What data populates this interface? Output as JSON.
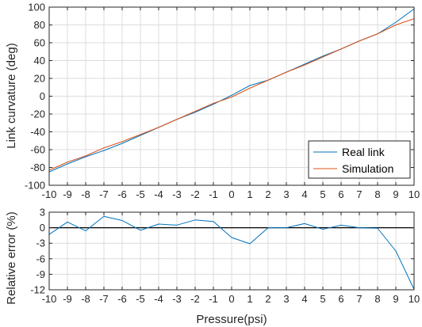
{
  "colors": {
    "real": "#0072BD",
    "sim": "#D95319",
    "zero_line": "#000000",
    "grid": "#dcdcdc",
    "axis": "#262626"
  },
  "chart_data": [
    {
      "type": "line",
      "ylabel": "Link curvature (deg)",
      "xlim": [
        -10,
        10
      ],
      "ylim": [
        -100,
        100
      ],
      "xticks": [
        "-10",
        "-9",
        "-8",
        "-7",
        "-6",
        "-5",
        "-4",
        "-3",
        "-2",
        "-1",
        "0",
        "1",
        "2",
        "3",
        "4",
        "5",
        "6",
        "7",
        "8",
        "9",
        "10"
      ],
      "yticks": [
        "-100",
        "-80",
        "-60",
        "-40",
        "-20",
        "0",
        "20",
        "40",
        "60",
        "80",
        "100"
      ],
      "grid": true,
      "legend_position": "bottom-right",
      "x": [
        -10,
        -9,
        -8,
        -7,
        -6,
        -5,
        -4,
        -3,
        -2,
        -1,
        0,
        1,
        2,
        3,
        4,
        5,
        6,
        7,
        8,
        9,
        10
      ],
      "series": [
        {
          "name": "Real link",
          "values": [
            -85,
            -76,
            -68,
            -61,
            -53,
            -44,
            -35,
            -26,
            -18,
            -9,
            1,
            12,
            18,
            27,
            36,
            45,
            53,
            62,
            70,
            83,
            98
          ]
        },
        {
          "name": "Simulation",
          "values": [
            -83,
            -74,
            -67,
            -58,
            -51,
            -43,
            -35,
            -26,
            -17,
            -8,
            -1,
            9,
            18,
            27,
            35,
            44,
            53,
            62,
            70,
            80,
            87
          ]
        }
      ]
    },
    {
      "type": "line",
      "xlabel": "Pressure(psi)",
      "ylabel": "Relative error (%)",
      "xlim": [
        -10,
        10
      ],
      "ylim": [
        -12,
        3
      ],
      "xticks": [
        "-10",
        "-9",
        "-8",
        "-7",
        "-6",
        "-5",
        "-4",
        "-3",
        "-2",
        "-1",
        "0",
        "1",
        "2",
        "3",
        "4",
        "5",
        "6",
        "7",
        "8",
        "9",
        "10"
      ],
      "yticks": [
        "3",
        "0",
        "-3",
        "-6",
        "-9",
        "-12"
      ],
      "grid": true,
      "reference_line_y": 0,
      "x": [
        -10,
        -9,
        -8,
        -7,
        -6,
        -5,
        -4,
        -3,
        -2,
        -1,
        0,
        1,
        2,
        3,
        4,
        5,
        6,
        7,
        8,
        9,
        10
      ],
      "series": [
        {
          "values": [
            -1.3,
            1.1,
            -0.6,
            2.2,
            1.4,
            -0.5,
            0.7,
            0.5,
            1.5,
            1.2,
            -1.9,
            -3.1,
            0.0,
            0.0,
            0.8,
            -0.3,
            0.5,
            0.0,
            -0.1,
            -4.5,
            -11.9
          ]
        }
      ]
    }
  ]
}
